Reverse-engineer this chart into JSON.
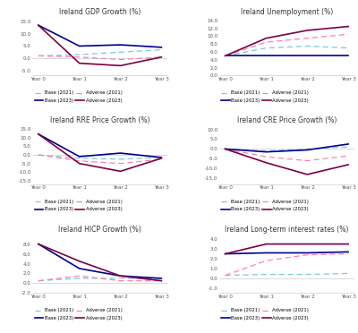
{
  "subplots": [
    {
      "title": "Ireland GDP Growth (%)",
      "ylim": [
        -7,
        17
      ],
      "yticks": [
        -5.0,
        0.0,
        5.0,
        10.0,
        15.0
      ],
      "series": {
        "base_2021": [
          1.0,
          1.5,
          2.5,
          3.5
        ],
        "adverse_2021": [
          1.0,
          0.5,
          -0.5,
          0.5
        ],
        "base_2023": [
          13.5,
          5.0,
          5.5,
          4.5
        ],
        "adverse_2023": [
          13.5,
          -2.0,
          -3.0,
          0.5
        ]
      }
    },
    {
      "title": "Ireland Unemployment (%)",
      "ylim": [
        0,
        15
      ],
      "yticks": [
        0.0,
        2.0,
        4.0,
        6.0,
        8.0,
        10.0,
        12.0,
        14.0
      ],
      "series": {
        "base_2021": [
          5.0,
          7.0,
          7.5,
          7.0
        ],
        "adverse_2021": [
          5.0,
          8.5,
          9.5,
          10.5
        ],
        "base_2023": [
          5.0,
          5.0,
          5.0,
          5.0
        ],
        "adverse_2023": [
          5.0,
          9.5,
          11.5,
          12.5
        ]
      }
    },
    {
      "title": "Ireland RRE Price Growth (%)",
      "ylim": [
        -17,
        17
      ],
      "yticks": [
        -15.0,
        -10.0,
        -5.0,
        0.0,
        5.0,
        10.0,
        15.0
      ],
      "series": {
        "base_2021": [
          0.0,
          -2.0,
          -2.5,
          -1.5
        ],
        "adverse_2021": [
          0.0,
          -3.5,
          -5.0,
          -2.5
        ],
        "base_2023": [
          12.0,
          -1.0,
          1.0,
          -1.5
        ],
        "adverse_2023": [
          12.0,
          -5.0,
          -9.5,
          -2.0
        ]
      }
    },
    {
      "title": "Ireland CRE Price Growth (%)",
      "ylim": [
        -18,
        12
      ],
      "yticks": [
        -15.0,
        -10.0,
        -5.0,
        0.0,
        5.0,
        10.0
      ],
      "series": {
        "base_2021": [
          0.0,
          -1.0,
          0.0,
          1.0
        ],
        "adverse_2021": [
          0.0,
          -4.0,
          -6.0,
          -3.5
        ],
        "base_2023": [
          0.0,
          -1.5,
          -0.5,
          2.5
        ],
        "adverse_2023": [
          0.0,
          -7.0,
          -13.0,
          -8.0
        ]
      }
    },
    {
      "title": "Ireland HICP Growth (%)",
      "ylim": [
        -2,
        10
      ],
      "yticks": [
        -2.0,
        0.0,
        2.0,
        4.0,
        6.0,
        8.0
      ],
      "series": {
        "base_2021": [
          0.5,
          1.0,
          1.0,
          1.0
        ],
        "adverse_2021": [
          0.5,
          1.5,
          0.5,
          0.5
        ],
        "base_2023": [
          8.0,
          3.0,
          1.5,
          1.0
        ],
        "adverse_2023": [
          8.0,
          4.5,
          1.5,
          0.5
        ]
      }
    },
    {
      "title": "Ireland Long-term interest rates (%)",
      "ylim": [
        -1.5,
        4.5
      ],
      "yticks": [
        -1.0,
        0.0,
        1.0,
        2.0,
        3.0,
        4.0
      ],
      "series": {
        "base_2021": [
          0.3,
          0.4,
          0.4,
          0.5
        ],
        "adverse_2021": [
          0.3,
          1.8,
          2.4,
          2.5
        ],
        "base_2023": [
          2.5,
          2.6,
          2.6,
          2.7
        ],
        "adverse_2023": [
          2.5,
          3.5,
          3.5,
          3.5
        ]
      }
    }
  ],
  "x_labels": [
    "Year 0",
    "Year 1",
    "Year 2",
    "Year 3"
  ],
  "colors": {
    "base_2021": "#7EC8E3",
    "adverse_2021": "#FF80AA",
    "base_2023": "#00008B",
    "adverse_2023": "#7B0045"
  },
  "legend_labels": {
    "base_2021": "Base (2021)",
    "adverse_2021": "Adverse (2021)",
    "base_2023": "Base (2023)",
    "adverse_2023": "Adverse (2023)"
  }
}
